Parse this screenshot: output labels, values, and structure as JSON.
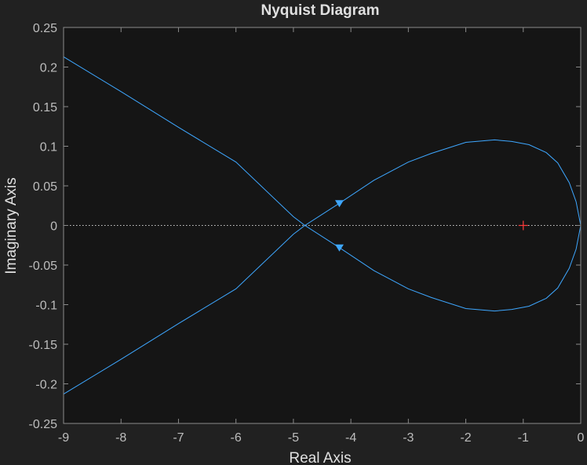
{
  "chart_data": {
    "type": "line",
    "title": "Nyquist Diagram",
    "xlabel": "Real Axis",
    "ylabel": "Imaginary Axis",
    "xlim": [
      -9,
      0
    ],
    "ylim": [
      -0.25,
      0.25
    ],
    "xticks": [
      "-9",
      "-8",
      "-7",
      "-6",
      "-5",
      "-4",
      "-3",
      "-2",
      "-1",
      "0"
    ],
    "yticks": [
      "0.25",
      "0.2",
      "0.15",
      "0.1",
      "0.05",
      "0",
      "-0.05",
      "-0.1",
      "-0.15",
      "-0.2",
      "-0.25"
    ],
    "grid": false,
    "background": "#151515",
    "figure_background": "#212121",
    "series": [
      {
        "color": "#3ea7ff",
        "x": [
          -9.0,
          -8.0,
          -7.0,
          -6.0,
          -5.0,
          -4.8,
          -4.2,
          -3.6,
          -3.0,
          -2.6,
          -2.0,
          -1.5,
          -1.2,
          -0.9,
          -0.6,
          -0.4,
          -0.2,
          -0.08,
          0.0
        ],
        "y": [
          0.213,
          0.169,
          0.124,
          0.08,
          0.011,
          0.0,
          0.028,
          0.057,
          0.08,
          0.091,
          0.105,
          0.108,
          0.106,
          0.102,
          0.092,
          0.079,
          0.054,
          0.03,
          0.0
        ]
      },
      {
        "color": "#3ea7ff",
        "x": [
          -9.0,
          -8.0,
          -7.0,
          -6.0,
          -5.0,
          -4.8,
          -4.2,
          -3.6,
          -3.0,
          -2.6,
          -2.0,
          -1.5,
          -1.2,
          -0.9,
          -0.6,
          -0.4,
          -0.2,
          -0.08,
          0.0
        ],
        "y": [
          -0.213,
          -0.169,
          -0.124,
          -0.08,
          -0.011,
          0.0,
          -0.028,
          -0.057,
          -0.08,
          -0.091,
          -0.105,
          -0.108,
          -0.106,
          -0.102,
          -0.092,
          -0.079,
          -0.054,
          -0.03,
          0.0
        ]
      }
    ],
    "arrows": [
      {
        "x": -4.2,
        "y": 0.028,
        "direction": "down"
      },
      {
        "x": -4.2,
        "y": -0.028,
        "direction": "down"
      }
    ],
    "critical_point": {
      "x": -1,
      "y": 0,
      "marker": "+",
      "color": "#ff3b3b"
    },
    "zero_line": {
      "y": 0,
      "style": "dotted",
      "color": "#cfcfcf"
    }
  }
}
